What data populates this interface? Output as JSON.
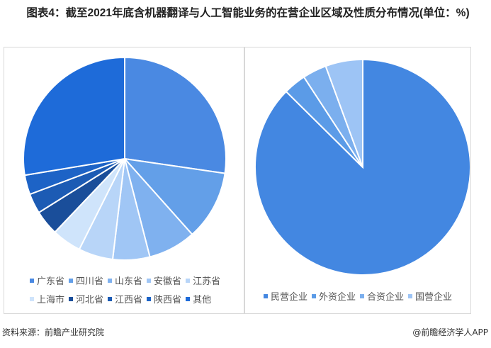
{
  "title": "图表4：截至2021年底含机器翻译与人工智能业务的在营企业区域及性质分布情况(单位：%)",
  "chart_data": [
    {
      "type": "pie",
      "categories": [
        "广东省",
        "四川省",
        "山东省",
        "安徽省",
        "江苏省",
        "上海市",
        "河北省",
        "江西省",
        "陕西省",
        "其他"
      ],
      "values": [
        27.3,
        11.1,
        7.6,
        5.9,
        5.5,
        4.7,
        4.0,
        3.2,
        3.1,
        27.6
      ],
      "colors": [
        "#4a89e2",
        "#639fe8",
        "#7fb1ef",
        "#a0c6f5",
        "#b8d5f8",
        "#cfe4fb",
        "#1a4e9a",
        "#1c5bb4",
        "#1d63c6",
        "#1e6bd9"
      ],
      "legend": "bottom"
    },
    {
      "type": "pie",
      "categories": [
        "民营企业",
        "外资企业",
        "合资企业",
        "国营企业"
      ],
      "values": [
        87.4,
        3.4,
        3.6,
        5.6
      ],
      "colors": [
        "#4387e1",
        "#5b9be7",
        "#7bafee",
        "#9dc4f5"
      ],
      "legend": "bottom"
    }
  ],
  "source": "资料来源：前瞻产业研究院",
  "credit": "@前瞻经济学人APP"
}
